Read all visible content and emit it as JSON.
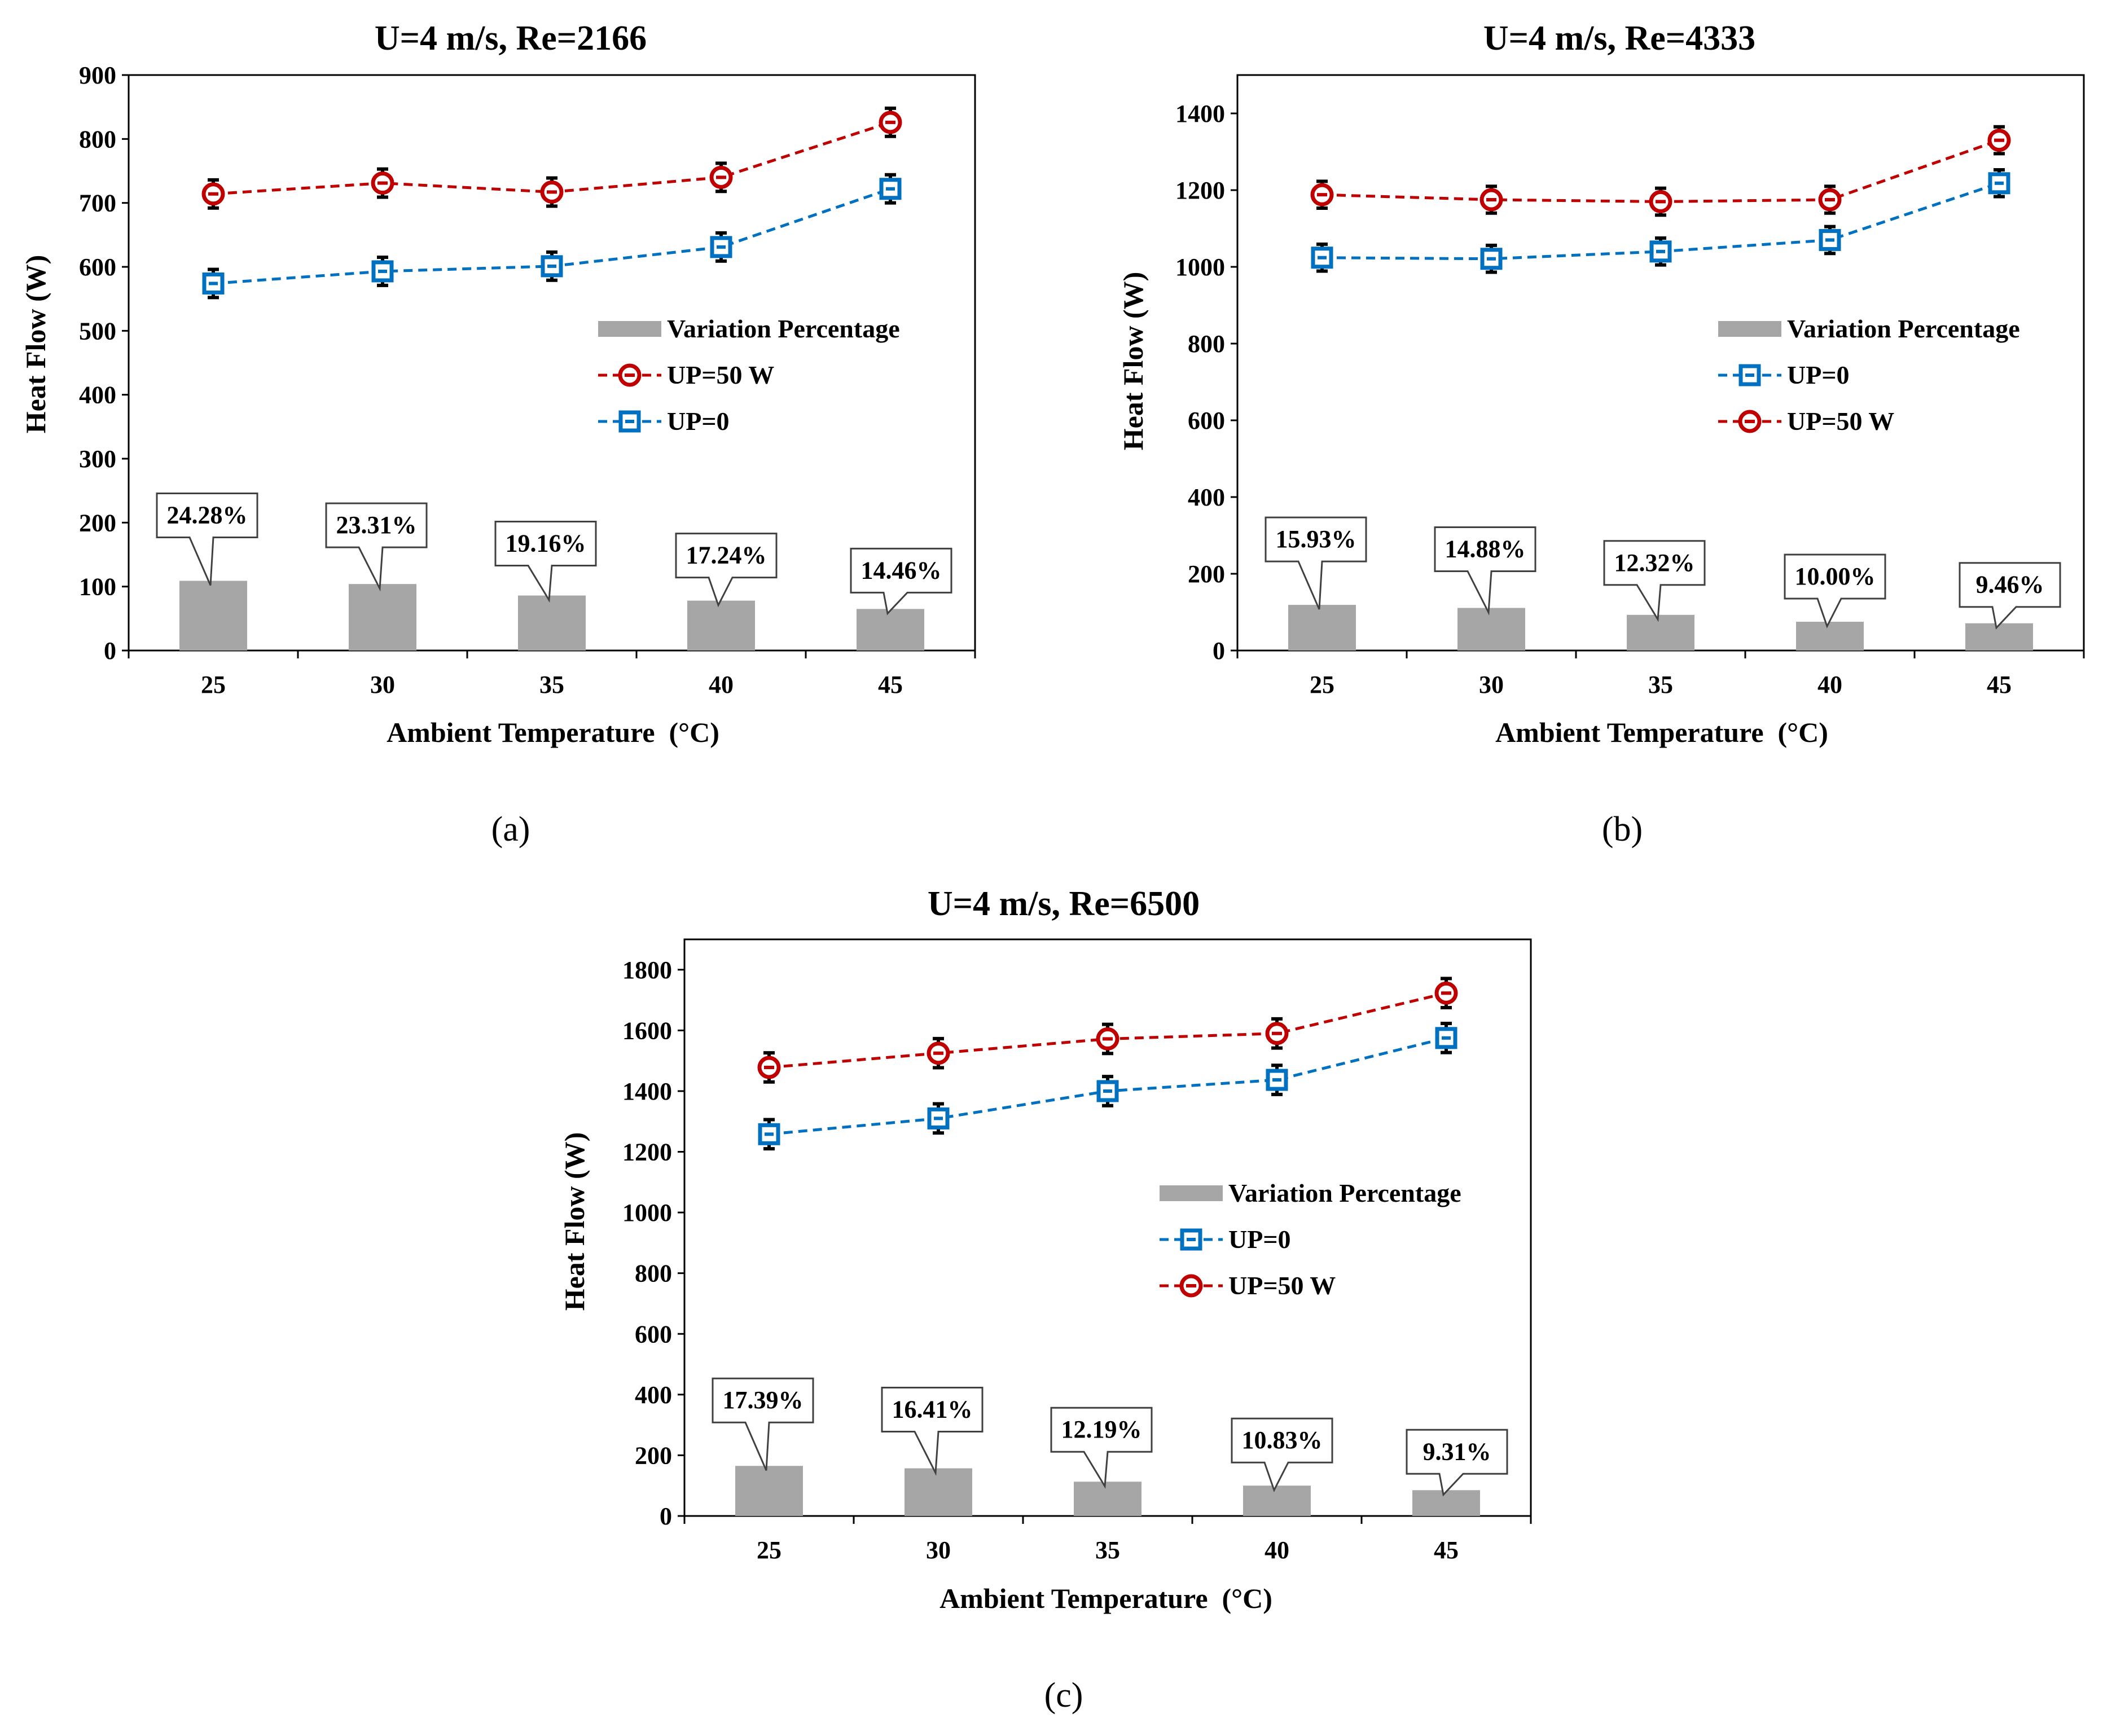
{
  "colors": {
    "bar": "#a6a6a6",
    "up50": "#c00000",
    "up0": "#0070c0",
    "errorbar": "#000000",
    "axis": "#000000",
    "callout_fill": "#ffffff"
  },
  "chart_data": [
    {
      "type": "bar",
      "panel_label": "(a)",
      "title": "U=4 m/s, Re=2166",
      "xlabel": "Ambient Temperature  (°C)",
      "ylabel": "Heat Flow (W)",
      "ylim": [
        0,
        900
      ],
      "yticks": [
        0,
        100,
        200,
        300,
        400,
        500,
        600,
        700,
        800,
        900
      ],
      "categories": [
        "25",
        "30",
        "35",
        "40",
        "45"
      ],
      "bars": {
        "name": "Variation Percentage",
        "values": [
          109,
          104,
          86,
          78,
          65
        ]
      },
      "bar_labels": [
        "24.28%",
        "23.31%",
        "19.16%",
        "17.24%",
        "14.46%"
      ],
      "series": [
        {
          "name": "UP=50 W",
          "marker": "circle",
          "color_key": "up50",
          "values": [
            714,
            731,
            717,
            740,
            826
          ],
          "error": 22
        },
        {
          "name": "UP=0",
          "marker": "square",
          "color_key": "up0",
          "values": [
            574,
            593,
            601,
            631,
            722
          ],
          "error": 22
        }
      ],
      "legend": [
        "Variation Percentage",
        "UP=50 W",
        "UP=0"
      ],
      "legend_order": [
        "bars",
        0,
        1
      ],
      "legend_position": "right-middle",
      "grid": false
    },
    {
      "type": "bar",
      "panel_label": "(b)",
      "title": "U=4 m/s, Re=4333",
      "xlabel": "Ambient Temperature  (°C)",
      "ylabel": "Heat Flow (W)",
      "ylim": [
        0,
        1500
      ],
      "yticks": [
        0,
        200,
        400,
        600,
        800,
        1000,
        1200,
        1400
      ],
      "categories": [
        "25",
        "30",
        "35",
        "40",
        "45"
      ],
      "bars": {
        "name": "Variation Percentage",
        "values": [
          119,
          111,
          93,
          75,
          71
        ]
      },
      "bar_labels": [
        "15.93%",
        "14.88%",
        "12.32%",
        "10.00%",
        "9.46%"
      ],
      "series": [
        {
          "name": "UP=0",
          "marker": "square",
          "color_key": "up0",
          "values": [
            1024,
            1021,
            1040,
            1070,
            1218
          ],
          "error": 35
        },
        {
          "name": "UP=50 W",
          "marker": "circle",
          "color_key": "up50",
          "values": [
            1188,
            1175,
            1170,
            1175,
            1330
          ],
          "error": 35
        }
      ],
      "legend": [
        "Variation Percentage",
        "UP=0",
        "UP=50 W"
      ],
      "legend_order": [
        "bars",
        0,
        1
      ],
      "legend_position": "right-middle",
      "grid": false
    },
    {
      "type": "bar",
      "panel_label": "(c)",
      "title": "U=4 m/s, Re=6500",
      "xlabel": "Ambient Temperature  (°C)",
      "ylabel": "Heat Flow (W)",
      "ylim": [
        0,
        1900
      ],
      "yticks": [
        0,
        200,
        400,
        600,
        800,
        1000,
        1200,
        1400,
        1600,
        1800
      ],
      "categories": [
        "25",
        "30",
        "35",
        "40",
        "45"
      ],
      "bars": {
        "name": "Variation Percentage",
        "values": [
          165,
          157,
          113,
          100,
          85
        ]
      },
      "bar_labels": [
        "17.39%",
        "16.41%",
        "12.19%",
        "10.83%",
        "9.31%"
      ],
      "series": [
        {
          "name": "UP=0",
          "marker": "square",
          "color_key": "up0",
          "values": [
            1258,
            1310,
            1400,
            1437,
            1575
          ],
          "error": 48
        },
        {
          "name": "UP=50 W",
          "marker": "circle",
          "color_key": "up50",
          "values": [
            1478,
            1525,
            1572,
            1590,
            1723
          ],
          "error": 48
        }
      ],
      "legend": [
        "Variation Percentage",
        "UP=0",
        "UP=50 W"
      ],
      "legend_order": [
        "bars",
        0,
        1
      ],
      "legend_position": "right-middle",
      "grid": false
    }
  ]
}
